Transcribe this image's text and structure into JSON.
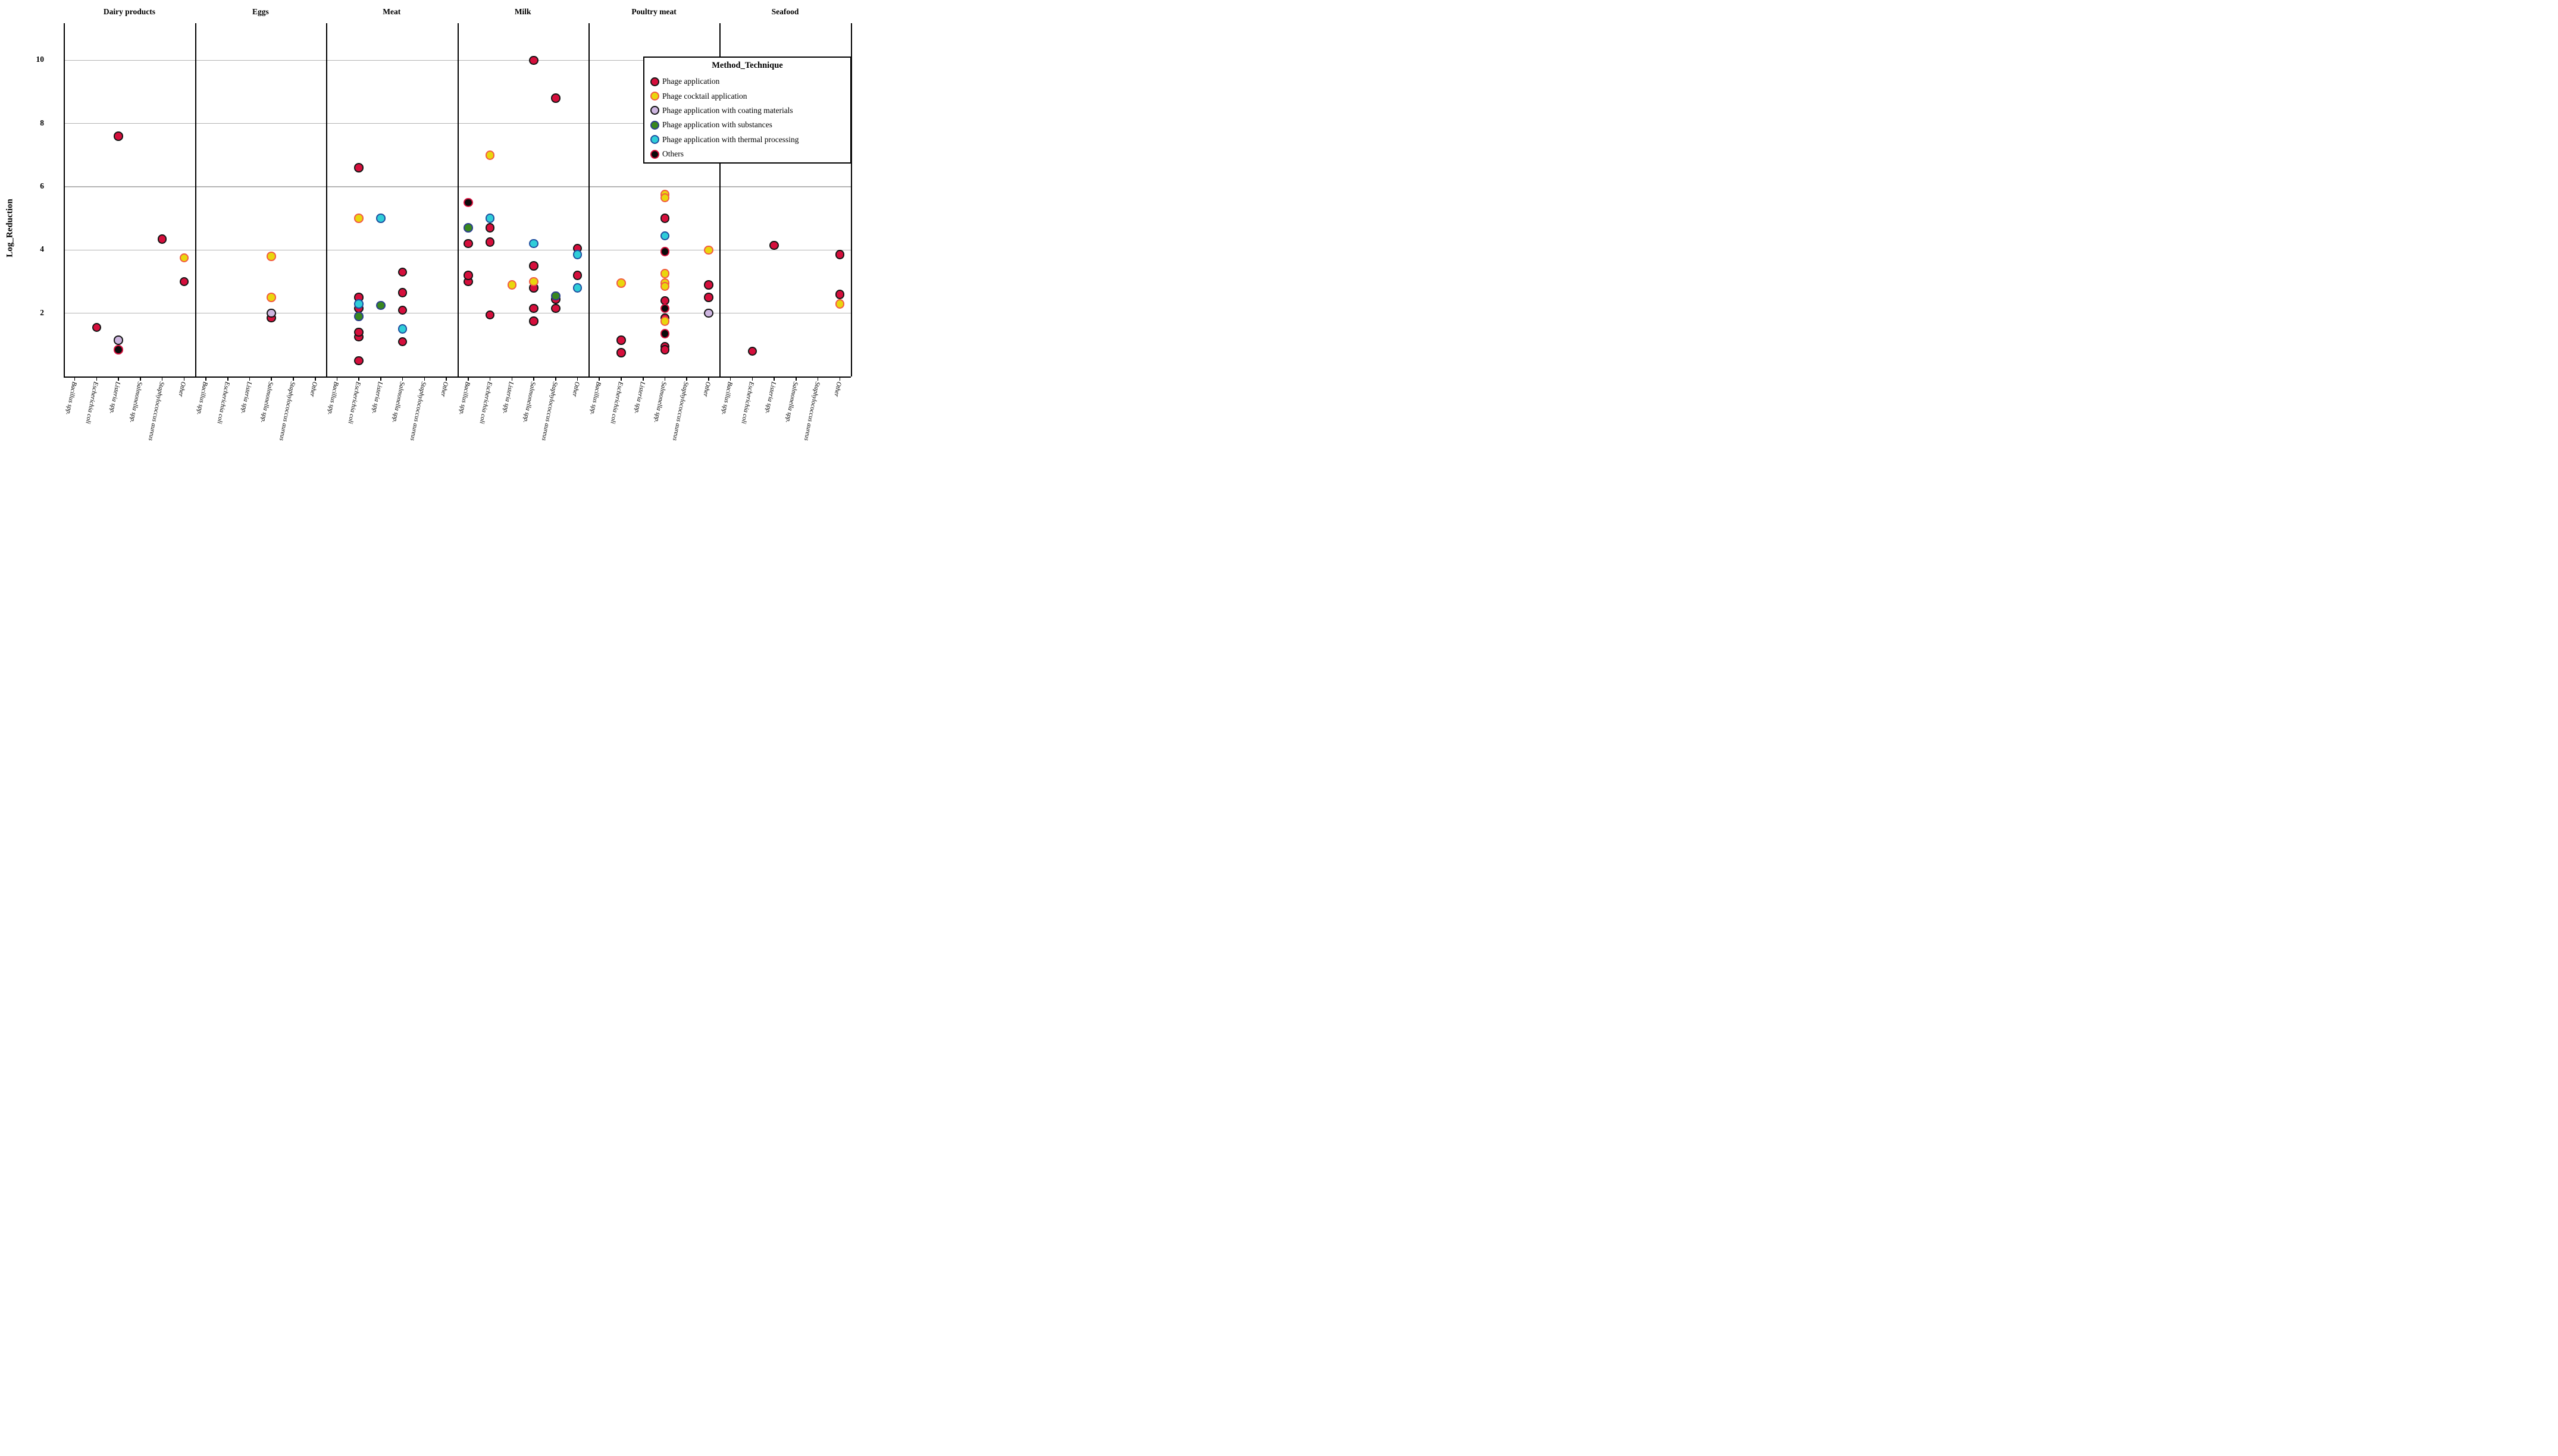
{
  "y_axis": {
    "label": "Log_Reduction",
    "ticks": [
      2,
      4,
      6,
      8,
      10
    ],
    "min": 0,
    "max": 11.17
  },
  "legend": {
    "title": "Method_Technique",
    "items": [
      {
        "id": "phage",
        "label": "Phage application",
        "fill": "#d50f3c",
        "stroke": "#141414"
      },
      {
        "id": "cocktail",
        "label": "Phage cocktail application",
        "fill": "#e9d60d",
        "stroke": "#f25b43"
      },
      {
        "id": "coating",
        "label": "Phage application with coating materials",
        "fill": "#cdb5df",
        "stroke": "#141414"
      },
      {
        "id": "substances",
        "label": "Phage application with substances",
        "fill": "#38871f",
        "stroke": "#2b3e8f"
      },
      {
        "id": "thermal",
        "label": "Phage application with thermal processing",
        "fill": "#2fcdd8",
        "stroke": "#1e4fa0"
      },
      {
        "id": "others",
        "label": "Others",
        "fill": "#0b0b0b",
        "stroke": "#d50f3c"
      }
    ]
  },
  "chart_data": {
    "type": "scatter",
    "title": "",
    "xlabel": "",
    "ylabel": "Log_Reduction",
    "ylim": [
      0,
      11.17
    ],
    "yticks": [
      2,
      4,
      6,
      8,
      10
    ],
    "grid": "horizontal",
    "legend_position": "top-right-overlay",
    "categories": [
      "Bacillus spp.",
      "Escherichia coli",
      "Listeria spp.",
      "Salmonella spp.",
      "Staphylococcus aureus",
      "Other"
    ],
    "facets": [
      {
        "title": "Dairy products",
        "points": [
          {
            "species": "Listeria spp.",
            "method": "phage",
            "value": 7.6
          },
          {
            "species": "Staphylococcus aureus",
            "method": "phage",
            "value": 4.35
          },
          {
            "species": "Other",
            "method": "cocktail",
            "value": 3.75
          },
          {
            "species": "Other",
            "method": "phage",
            "value": 3.0
          },
          {
            "species": "Escherichia coli",
            "method": "phage",
            "value": 1.55
          },
          {
            "species": "Listeria spp.",
            "method": "coating",
            "value": 1.15
          },
          {
            "species": "Listeria spp.",
            "method": "others",
            "value": 0.85
          }
        ]
      },
      {
        "title": "Eggs",
        "points": [
          {
            "species": "Salmonella spp.",
            "method": "cocktail",
            "value": 3.8
          },
          {
            "species": "Salmonella spp.",
            "method": "cocktail",
            "value": 2.5
          },
          {
            "species": "Salmonella spp.",
            "method": "phage",
            "value": 1.85
          },
          {
            "species": "Salmonella spp.",
            "method": "coating",
            "value": 2.0
          }
        ]
      },
      {
        "title": "Meat",
        "points": [
          {
            "species": "Escherichia coli",
            "method": "phage",
            "value": 6.6
          },
          {
            "species": "Escherichia coli",
            "method": "cocktail",
            "value": 5.0
          },
          {
            "species": "Listeria spp.",
            "method": "thermal",
            "value": 5.0
          },
          {
            "species": "Salmonella spp.",
            "method": "phage",
            "value": 3.3
          },
          {
            "species": "Salmonella spp.",
            "method": "phage",
            "value": 2.65
          },
          {
            "species": "Escherichia coli",
            "method": "phage",
            "value": 2.5
          },
          {
            "species": "Escherichia coli",
            "method": "phage",
            "value": 2.15
          },
          {
            "species": "Escherichia coli",
            "method": "thermal",
            "value": 2.3
          },
          {
            "species": "Listeria spp.",
            "method": "substances",
            "value": 2.25
          },
          {
            "species": "Salmonella spp.",
            "method": "phage",
            "value": 2.1
          },
          {
            "species": "Escherichia coli",
            "method": "substances",
            "value": 1.9
          },
          {
            "species": "Salmonella spp.",
            "method": "thermal",
            "value": 1.5
          },
          {
            "species": "Escherichia coli",
            "method": "phage",
            "value": 1.25
          },
          {
            "species": "Escherichia coli",
            "method": "phage",
            "value": 1.4
          },
          {
            "species": "Salmonella spp.",
            "method": "phage",
            "value": 1.1
          },
          {
            "species": "Escherichia coli",
            "method": "phage",
            "value": 0.5
          }
        ]
      },
      {
        "title": "Milk",
        "points": [
          {
            "species": "Salmonella spp.",
            "method": "phage",
            "value": 10.0
          },
          {
            "species": "Staphylococcus aureus",
            "method": "phage",
            "value": 8.8
          },
          {
            "species": "Escherichia coli",
            "method": "cocktail",
            "value": 7.0
          },
          {
            "species": "Bacillus spp.",
            "method": "others",
            "value": 5.5
          },
          {
            "species": "Escherichia coli",
            "method": "thermal",
            "value": 5.0
          },
          {
            "species": "Bacillus spp.",
            "method": "substances",
            "value": 4.7
          },
          {
            "species": "Escherichia coli",
            "method": "phage",
            "value": 4.7
          },
          {
            "species": "Escherichia coli",
            "method": "phage",
            "value": 4.25
          },
          {
            "species": "Bacillus spp.",
            "method": "phage",
            "value": 4.2
          },
          {
            "species": "Salmonella spp.",
            "method": "thermal",
            "value": 4.2
          },
          {
            "species": "Other",
            "method": "phage",
            "value": 4.05
          },
          {
            "species": "Other",
            "method": "thermal",
            "value": 3.85
          },
          {
            "species": "Salmonella spp.",
            "method": "phage",
            "value": 3.5
          },
          {
            "species": "Other",
            "method": "phage",
            "value": 3.2
          },
          {
            "species": "Bacillus spp.",
            "method": "phage",
            "value": 3.0
          },
          {
            "species": "Bacillus spp.",
            "method": "phage",
            "value": 3.2
          },
          {
            "species": "Listeria spp.",
            "method": "cocktail",
            "value": 2.9
          },
          {
            "species": "Salmonella spp.",
            "method": "phage",
            "value": 2.8
          },
          {
            "species": "Salmonella spp.",
            "method": "cocktail",
            "value": 3.0
          },
          {
            "species": "Other",
            "method": "thermal",
            "value": 2.8
          },
          {
            "species": "Staphylococcus aureus",
            "method": "phage",
            "value": 2.45
          },
          {
            "species": "Staphylococcus aureus",
            "method": "substances",
            "value": 2.55
          },
          {
            "species": "Staphylococcus aureus",
            "method": "phage",
            "value": 2.15
          },
          {
            "species": "Salmonella spp.",
            "method": "phage",
            "value": 2.15
          },
          {
            "species": "Escherichia coli",
            "method": "phage",
            "value": 1.95
          },
          {
            "species": "Salmonella spp.",
            "method": "phage",
            "value": 1.75
          }
        ]
      },
      {
        "title": "Poultry meat",
        "points": [
          {
            "species": "Salmonella spp.",
            "method": "cocktail",
            "value": 5.75
          },
          {
            "species": "Salmonella spp.",
            "method": "cocktail",
            "value": 5.65
          },
          {
            "species": "Salmonella spp.",
            "method": "phage",
            "value": 5.0
          },
          {
            "species": "Salmonella spp.",
            "method": "thermal",
            "value": 4.45
          },
          {
            "species": "Other",
            "method": "cocktail",
            "value": 4.0
          },
          {
            "species": "Salmonella spp.",
            "method": "others",
            "value": 3.95
          },
          {
            "species": "Salmonella spp.",
            "method": "cocktail",
            "value": 3.25
          },
          {
            "species": "Escherichia coli",
            "method": "cocktail",
            "value": 2.95
          },
          {
            "species": "Salmonella spp.",
            "method": "cocktail",
            "value": 2.95
          },
          {
            "species": "Salmonella spp.",
            "method": "cocktail",
            "value": 2.85
          },
          {
            "species": "Other",
            "method": "phage",
            "value": 2.9
          },
          {
            "species": "Other",
            "method": "phage",
            "value": 2.5
          },
          {
            "species": "Salmonella spp.",
            "method": "phage",
            "value": 2.4
          },
          {
            "species": "Salmonella spp.",
            "method": "others",
            "value": 2.15
          },
          {
            "species": "Other",
            "method": "coating",
            "value": 2.0
          },
          {
            "species": "Salmonella spp.",
            "method": "phage",
            "value": 1.85
          },
          {
            "species": "Salmonella spp.",
            "method": "cocktail",
            "value": 1.75
          },
          {
            "species": "Salmonella spp.",
            "method": "others",
            "value": 1.35
          },
          {
            "species": "Escherichia coli",
            "method": "phage",
            "value": 1.15
          },
          {
            "species": "Salmonella spp.",
            "method": "phage",
            "value": 0.95
          },
          {
            "species": "Salmonella spp.",
            "method": "phage",
            "value": 0.85
          },
          {
            "species": "Escherichia coli",
            "method": "phage",
            "value": 0.75
          }
        ]
      },
      {
        "title": "Seafood",
        "points": [
          {
            "species": "Listeria spp.",
            "method": "phage",
            "value": 4.15
          },
          {
            "species": "Other",
            "method": "phage",
            "value": 3.85
          },
          {
            "species": "Other",
            "method": "phage",
            "value": 2.6
          },
          {
            "species": "Other",
            "method": "cocktail",
            "value": 2.3
          },
          {
            "species": "Escherichia coli",
            "method": "phage",
            "value": 0.8
          }
        ]
      }
    ]
  }
}
